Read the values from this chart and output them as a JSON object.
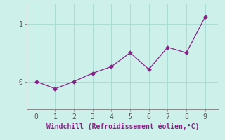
{
  "x": [
    0,
    1,
    2,
    3,
    4,
    5,
    6,
    7,
    8,
    9
  ],
  "y": [
    -0.05,
    -0.18,
    -0.05,
    0.1,
    0.22,
    0.47,
    0.17,
    0.57,
    0.47,
    1.12
  ],
  "line_color": "#882288",
  "marker": "D",
  "marker_size": 2.5,
  "xlabel": "Windchill (Refroidissement éolien,°C)",
  "xlabel_color": "#882288",
  "xlabel_fontsize": 7,
  "xticks": [
    0,
    1,
    2,
    3,
    4,
    5,
    6,
    7,
    8,
    9
  ],
  "xlim": [
    -0.5,
    9.7
  ],
  "ylim": [
    -0.55,
    1.35
  ],
  "background_color": "#cef0ea",
  "grid_color": "#a8ddd6",
  "axis_color": "#888888",
  "tick_color": "#555555",
  "tick_fontsize": 7,
  "ytick_vals": [
    -0.05,
    1.0
  ],
  "ytick_labels": [
    "-0",
    "1"
  ]
}
